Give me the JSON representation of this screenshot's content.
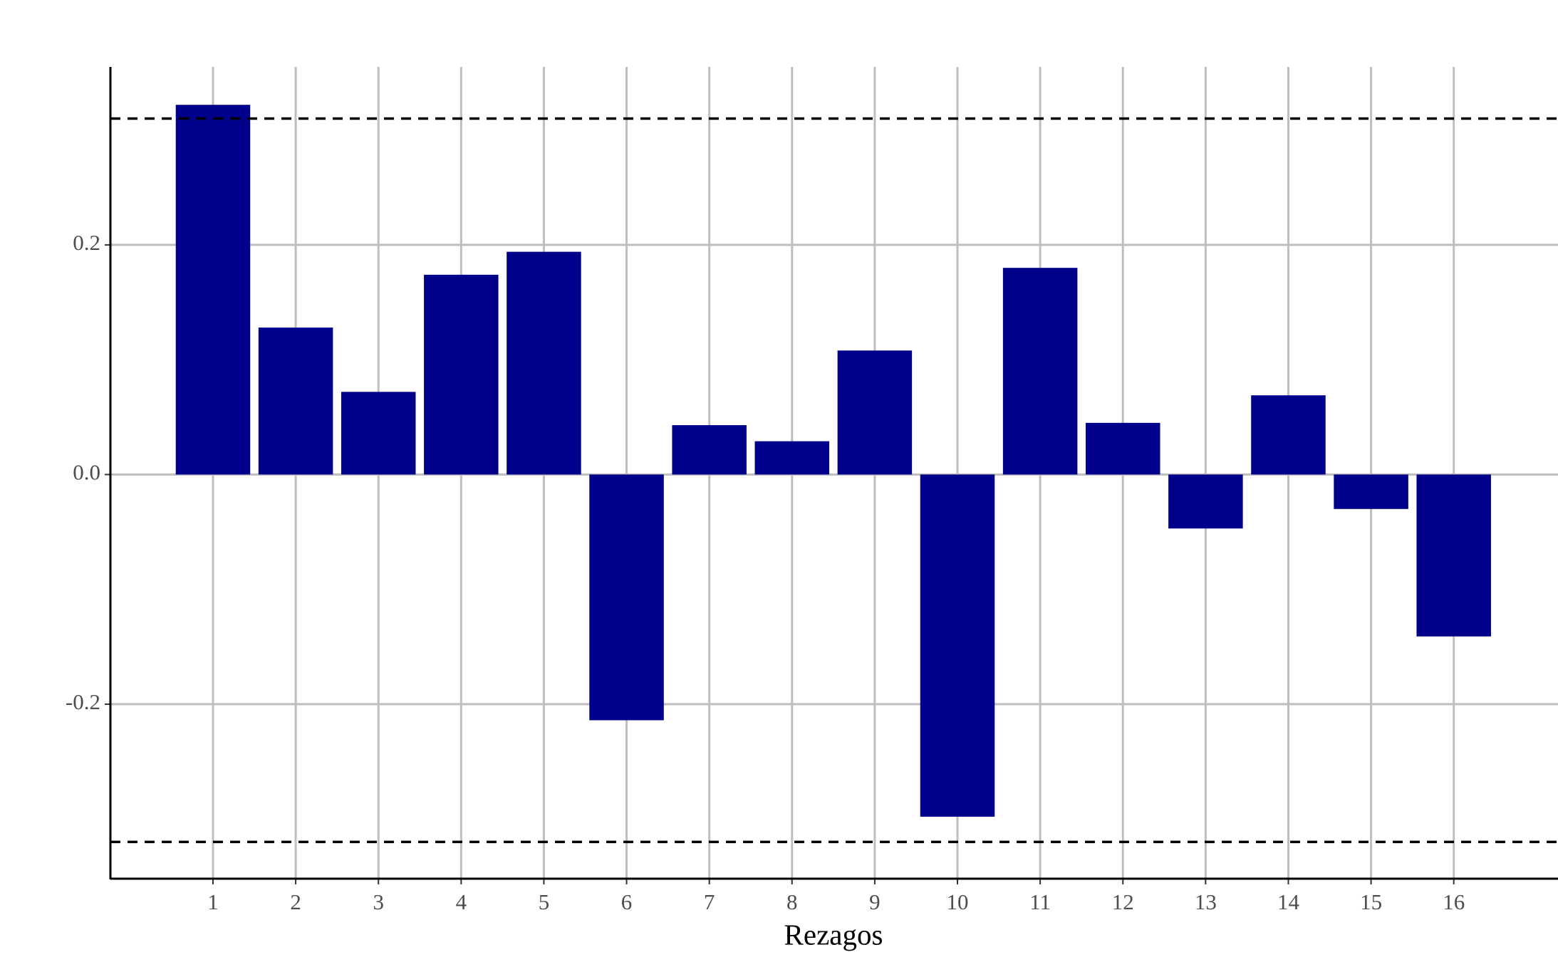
{
  "chart_data": {
    "type": "bar",
    "x_label": "Rezagos",
    "x": [
      1,
      2,
      3,
      4,
      5,
      6,
      7,
      8,
      9,
      10,
      11,
      12,
      13,
      14,
      15,
      16
    ],
    "values": [
      0.322,
      0.128,
      0.072,
      0.174,
      0.194,
      -0.214,
      0.043,
      0.029,
      0.108,
      -0.298,
      0.18,
      0.045,
      -0.047,
      0.069,
      -0.03,
      -0.141
    ],
    "color": "#00008b",
    "xlim": [
      -0.24,
      17.26
    ],
    "xticks": [
      1,
      2,
      3,
      4,
      5,
      6,
      7,
      8,
      9,
      10,
      11,
      12,
      13,
      14,
      15,
      16
    ],
    "ylim": [
      -0.352,
      0.355
    ],
    "yticks": [
      -0.2,
      {
        "value": 0,
        "label": "0.0"
      },
      0.2
    ],
    "grid": true,
    "hlines": [
      0.31,
      -0.32
    ]
  }
}
